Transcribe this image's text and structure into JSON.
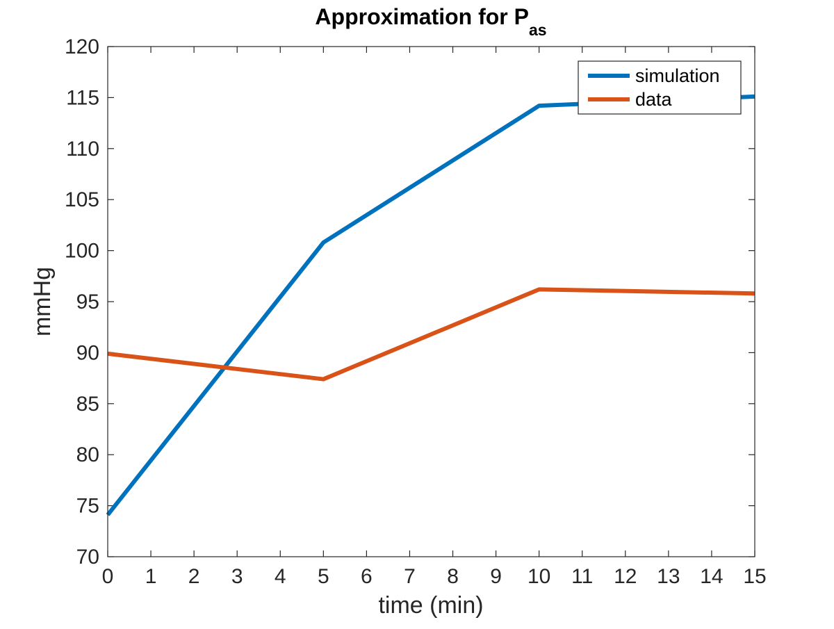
{
  "chart_data": {
    "type": "line",
    "title": {
      "main": "Approximation for P",
      "subscript": "as"
    },
    "xlabel": "time (min)",
    "ylabel": "mmHg",
    "xlim": [
      0,
      15
    ],
    "ylim": [
      70,
      120
    ],
    "xticks": [
      0,
      1,
      2,
      3,
      4,
      5,
      6,
      7,
      8,
      9,
      10,
      11,
      12,
      13,
      14,
      15
    ],
    "yticks": [
      70,
      75,
      80,
      85,
      90,
      95,
      100,
      105,
      110,
      115,
      120
    ],
    "grid": false,
    "legend_position": "top-right",
    "series": [
      {
        "name": "simulation",
        "color": "#0072BD",
        "x": [
          0,
          5,
          10,
          15
        ],
        "y": [
          74.1,
          100.8,
          114.2,
          115.1
        ]
      },
      {
        "name": "data",
        "color": "#D95319",
        "x": [
          0,
          5,
          10,
          15
        ],
        "y": [
          89.9,
          87.4,
          96.2,
          95.8
        ]
      }
    ]
  }
}
